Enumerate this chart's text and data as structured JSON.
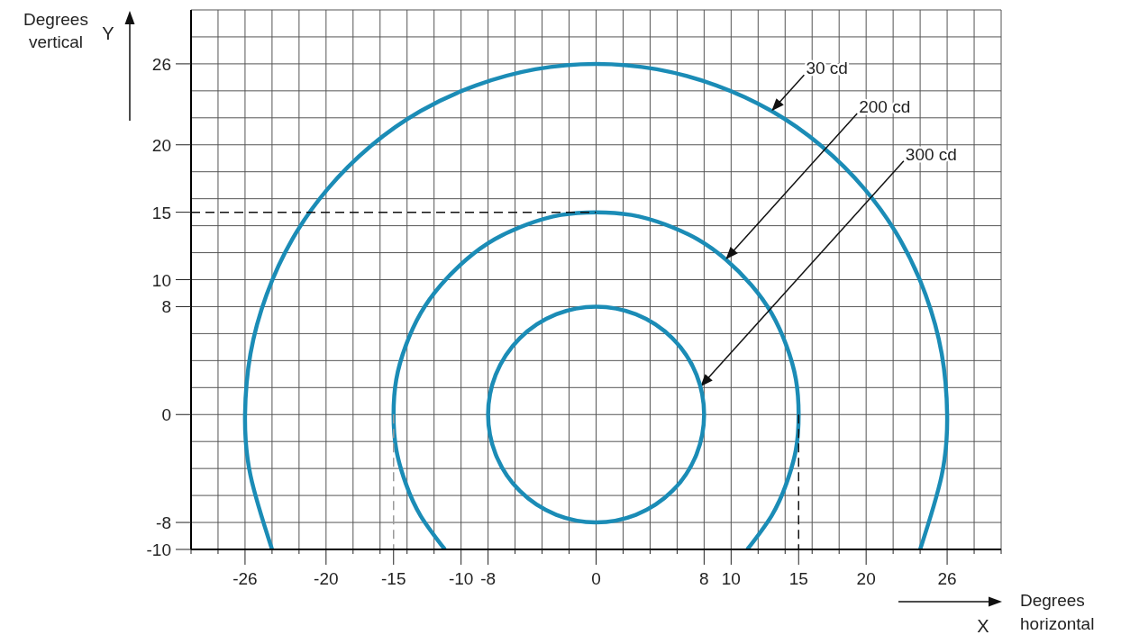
{
  "chart_data": {
    "type": "line",
    "xlabel": "Degrees horizontal",
    "ylabel": "Degrees vertical",
    "annotations": [
      {
        "text": "30 cd",
        "x": 13.0,
        "y": 22.5
      },
      {
        "text": "200 cd",
        "x": 9.6,
        "y": 11.5
      },
      "300 cd",
      "Y",
      "X"
    ],
    "series": [
      {
        "color": "#1b8cb6",
        "x": [
          -24.0,
          -25.6,
          -26,
          -25.6,
          -24.4,
          -22.5,
          -19.9,
          -16.7,
          -13.0,
          -8.9,
          -4.5,
          0,
          4.5,
          8.9,
          13.0,
          16.7,
          19.9,
          22.5,
          24.4,
          25.6,
          26,
          25.6,
          24.0
        ],
        "values": [
          -10.0,
          -4.5,
          0,
          4.5,
          8.9,
          13.0,
          16.7,
          19.9,
          22.5,
          24.4,
          25.6,
          26,
          25.6,
          24.4,
          22.5,
          19.9,
          16.7,
          13.0,
          8.9,
          4.5,
          0,
          -4.5,
          -10.0
        ]
      },
      {
        "color": "#1b8cb6",
        "x": [
          -11.2,
          -13.0,
          -14.1,
          -14.8,
          -15,
          -14.8,
          -14.1,
          -13.0,
          -11.5,
          -9.6,
          -7.5,
          -5.1,
          -2.6,
          0,
          2.6,
          5.1,
          7.5,
          9.6,
          11.5,
          13.0,
          14.1,
          14.8,
          15,
          14.8,
          14.1,
          13.0,
          11.2
        ],
        "values": [
          -10.0,
          -7.5,
          -5.1,
          -2.6,
          0,
          2.6,
          5.1,
          7.5,
          9.6,
          11.5,
          13.0,
          14.1,
          14.8,
          15,
          14.8,
          14.1,
          13.0,
          11.5,
          9.6,
          7.5,
          5.1,
          2.6,
          0,
          -2.6,
          -5.1,
          -7.5,
          -10.0
        ]
      },
      {
        "color": "#111111",
        "line_style": "dashed",
        "x": [
          -30,
          0
        ],
        "values": [
          15,
          15
        ]
      },
      {
        "color": "#9a9a9a",
        "line_style": "dashed",
        "x": [
          -15,
          -15
        ],
        "values": [
          0,
          -10
        ]
      },
      {
        "color": "#111111",
        "line_style": "dashed",
        "x": [
          15,
          15
        ],
        "values": [
          0,
          -10
        ]
      }
    ],
    "xlim": [
      -30,
      30
    ],
    "xticks": [
      {
        "value": -30,
        "label": null
      },
      {
        "value": -28,
        "label": null
      },
      -26,
      {
        "value": -24,
        "label": null
      },
      {
        "value": -22,
        "label": null
      },
      -20,
      {
        "value": -18,
        "label": null
      },
      {
        "value": -16,
        "label": null
      },
      -15,
      {
        "value": -14,
        "label": null
      },
      {
        "value": -12,
        "label": null
      },
      -10,
      -8,
      {
        "value": -6,
        "label": null
      },
      {
        "value": -4,
        "label": null
      },
      {
        "value": -2,
        "label": null
      },
      0,
      {
        "value": 2,
        "label": null
      },
      {
        "value": 4,
        "label": null
      },
      {
        "value": 6,
        "label": null
      },
      8,
      10,
      {
        "value": 12,
        "label": null
      },
      {
        "value": 14,
        "label": null
      },
      15,
      {
        "value": 16,
        "label": null
      },
      {
        "value": 18,
        "label": null
      },
      20,
      {
        "value": 22,
        "label": null
      },
      {
        "value": 24,
        "label": null
      },
      26,
      {
        "value": 28,
        "label": null
      },
      {
        "value": 30,
        "label": null
      }
    ],
    "ylim": [
      -10,
      30
    ],
    "yticks": [
      -10,
      -8,
      {
        "value": -6,
        "label": null
      },
      {
        "value": -4,
        "label": null
      },
      {
        "value": -2,
        "label": null
      },
      0,
      {
        "value": 2,
        "label": null
      },
      {
        "value": 4,
        "label": null
      },
      {
        "value": 6,
        "label": null
      },
      8,
      10,
      {
        "value": 12,
        "label": null
      },
      {
        "value": 14,
        "label": null
      },
      15,
      {
        "value": 16,
        "label": null
      },
      {
        "value": 18,
        "label": null
      },
      20,
      {
        "value": 22,
        "label": null
      },
      {
        "value": 24,
        "label": null
      },
      26,
      {
        "value": 28,
        "label": null
      },
      {
        "value": 30,
        "label": null
      }
    ],
    "grid": true,
    "marker": "none"
  }
}
